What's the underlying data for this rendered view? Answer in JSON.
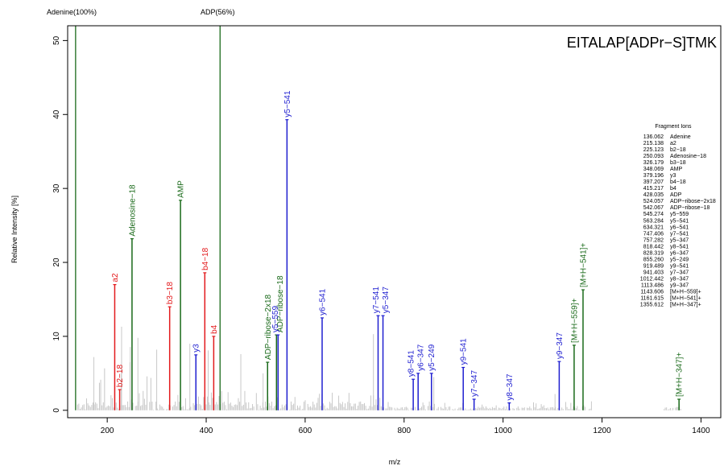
{
  "chart_data": {
    "type": "bar",
    "title": "EITALAP[ADPr−S]TMK",
    "xlabel": "m/z",
    "ylabel": "Relative Intensity [%]",
    "xlim": [
      120,
      1440
    ],
    "ylim": [
      -1,
      52
    ],
    "x_ticks": [
      200,
      400,
      600,
      800,
      1000,
      1200,
      1400
    ],
    "y_ticks": [
      0,
      10,
      20,
      30,
      40,
      50
    ],
    "colors": {
      "red": "#e31a1c",
      "blue": "#1f1fd0",
      "green": "#1a6a1a",
      "gray": "#c8c8c8",
      "axis": "#000000"
    },
    "offscale_peaks": [
      {
        "label": "Adenine(100%)",
        "mz": 136.062,
        "color": "green"
      },
      {
        "label": "ADP(56%)",
        "mz": 428.035,
        "color": "green"
      }
    ],
    "series": [
      {
        "label": "a2",
        "mz": 215.138,
        "intensity": 17.0,
        "color": "red"
      },
      {
        "label": "b2−18",
        "mz": 225.123,
        "intensity": 2.8,
        "color": "red"
      },
      {
        "label": "Adenosine−18",
        "mz": 250.093,
        "intensity": 23.2,
        "color": "green"
      },
      {
        "label": "b3−18",
        "mz": 326.179,
        "intensity": 14.0,
        "color": "red"
      },
      {
        "label": "AMP",
        "mz": 348.069,
        "intensity": 28.4,
        "color": "green"
      },
      {
        "label": "y3",
        "mz": 379.196,
        "intensity": 7.5,
        "color": "blue"
      },
      {
        "label": "b4−18",
        "mz": 397.207,
        "intensity": 18.6,
        "color": "red"
      },
      {
        "label": "b4",
        "mz": 415.217,
        "intensity": 10.0,
        "color": "red"
      },
      {
        "label": "ADP−ribose−2x18",
        "mz": 524.057,
        "intensity": 6.5,
        "color": "green"
      },
      {
        "label": "ADP−ribose−18",
        "mz": 542.067,
        "intensity": 10.2,
        "color": "green"
      },
      {
        "label": "y5−559",
        "mz": 545.274,
        "intensity": 10.2,
        "color": "blue"
      },
      {
        "label": "y5−541",
        "mz": 563.284,
        "intensity": 39.3,
        "color": "blue"
      },
      {
        "label": "y6−541",
        "mz": 634.321,
        "intensity": 12.5,
        "color": "blue"
      },
      {
        "label": "y7−541",
        "mz": 747.406,
        "intensity": 12.8,
        "color": "blue"
      },
      {
        "label": "y5−347",
        "mz": 757.282,
        "intensity": 12.8,
        "color": "blue"
      },
      {
        "label": "y8−541",
        "mz": 818.442,
        "intensity": 4.2,
        "color": "blue"
      },
      {
        "label": "y6−347",
        "mz": 828.319,
        "intensity": 5.0,
        "color": "blue"
      },
      {
        "label": "y5−249",
        "mz": 855.26,
        "intensity": 5.0,
        "color": "blue"
      },
      {
        "label": "y9−541",
        "mz": 919.489,
        "intensity": 5.8,
        "color": "blue"
      },
      {
        "label": "y7−347",
        "mz": 941.403,
        "intensity": 1.5,
        "color": "blue"
      },
      {
        "label": "y8−347",
        "mz": 1012.442,
        "intensity": 1.0,
        "color": "blue"
      },
      {
        "label": "y9−347",
        "mz": 1113.486,
        "intensity": 6.6,
        "color": "blue"
      },
      {
        "label": "[M+H−559]+",
        "mz": 1143.606,
        "intensity": 8.8,
        "color": "green"
      },
      {
        "label": "[M+H−541]+",
        "mz": 1161.615,
        "intensity": 16.3,
        "color": "green"
      },
      {
        "label": "[M+H−347]+",
        "mz": 1355.612,
        "intensity": 1.5,
        "color": "green"
      }
    ],
    "fragment_ions_title": "Fragment Ions",
    "fragment_ions": [
      {
        "mz": "136.062",
        "name": "Adenine"
      },
      {
        "mz": "215.138",
        "name": "a2"
      },
      {
        "mz": "225.123",
        "name": "b2−18"
      },
      {
        "mz": "250.093",
        "name": "Adenosine−18"
      },
      {
        "mz": "326.179",
        "name": "b3−18"
      },
      {
        "mz": "348.069",
        "name": "AMP"
      },
      {
        "mz": "379.196",
        "name": "y3"
      },
      {
        "mz": "397.207",
        "name": "b4−18"
      },
      {
        "mz": "415.217",
        "name": "b4"
      },
      {
        "mz": "428.035",
        "name": "ADP"
      },
      {
        "mz": "524.057",
        "name": "ADP−ribose−2x18"
      },
      {
        "mz": "542.067",
        "name": "ADP−ribose−18"
      },
      {
        "mz": "545.274",
        "name": "y5−559"
      },
      {
        "mz": "563.284",
        "name": "y5−541"
      },
      {
        "mz": "634.321",
        "name": "y6−541"
      },
      {
        "mz": "747.406",
        "name": "y7−541"
      },
      {
        "mz": "757.282",
        "name": "y5−347"
      },
      {
        "mz": "818.442",
        "name": "y8−541"
      },
      {
        "mz": "828.319",
        "name": "y6−347"
      },
      {
        "mz": "855.260",
        "name": "y5−249"
      },
      {
        "mz": "919.489",
        "name": "y9−541"
      },
      {
        "mz": "941.403",
        "name": "y7−347"
      },
      {
        "mz": "1012.442",
        "name": "y8−347"
      },
      {
        "mz": "1113.486",
        "name": "y9−347"
      },
      {
        "mz": "1143.606",
        "name": "[M+H−559]+"
      },
      {
        "mz": "1161.615",
        "name": "[M+H−541]+"
      },
      {
        "mz": "1355.612",
        "name": "[M+H−347]+"
      }
    ]
  }
}
